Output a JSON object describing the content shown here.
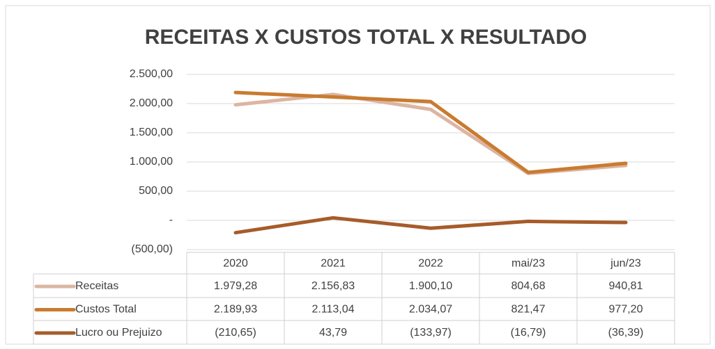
{
  "chart_data": {
    "type": "line",
    "title": "RECEITAS X CUSTOS TOTAL X RESULTADO",
    "categories": [
      "2020",
      "2021",
      "2022",
      "mai/23",
      "jun/23"
    ],
    "series": [
      {
        "name": "Receitas",
        "color": "#dcb5a2",
        "values": [
          1979.28,
          2156.83,
          1900.1,
          804.68,
          940.81
        ],
        "value_labels": [
          "1.979,28",
          "2.156,83",
          "1.900,10",
          "804,68",
          "940,81"
        ]
      },
      {
        "name": "Custos Total",
        "color": "#c97b30",
        "values": [
          2189.93,
          2113.04,
          2034.07,
          821.47,
          977.2
        ],
        "value_labels": [
          "2.189,93",
          "2.113,04",
          "2.034,07",
          "821,47",
          "977,20"
        ]
      },
      {
        "name": "Lucro ou Prejuizo",
        "color": "#a65c2a",
        "values": [
          -210.65,
          43.79,
          -133.97,
          -16.79,
          -36.39
        ],
        "value_labels": [
          "(210,65)",
          "43,79",
          "(133,97)",
          "(16,79)",
          "(36,39)"
        ]
      }
    ],
    "ylim": [
      -500,
      2500
    ],
    "yticks": [
      {
        "value": -500,
        "label": "(500,00)"
      },
      {
        "value": 0,
        "label": "-"
      },
      {
        "value": 500,
        "label": "500,00"
      },
      {
        "value": 1000,
        "label": "1.000,00"
      },
      {
        "value": 1500,
        "label": "1.500,00"
      },
      {
        "value": 2000,
        "label": "2.000,00"
      },
      {
        "value": 2500,
        "label": "2.500,00"
      }
    ],
    "grid": true
  }
}
